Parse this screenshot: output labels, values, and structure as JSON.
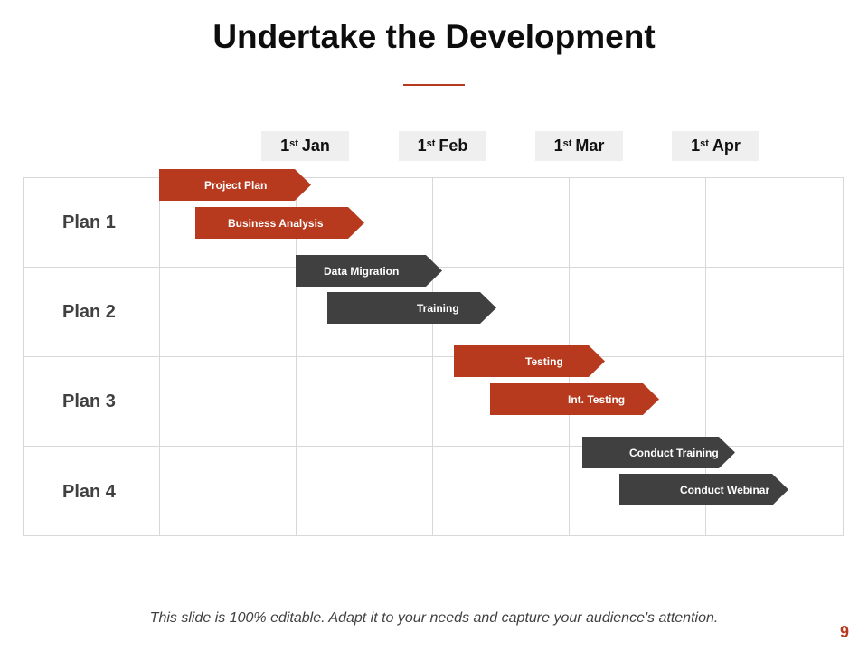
{
  "title": "Undertake the Development",
  "months": [
    {
      "day": "1",
      "suffix": "st",
      "month": "Jan"
    },
    {
      "day": "1",
      "suffix": "st",
      "month": "Feb"
    },
    {
      "day": "1",
      "suffix": "st",
      "month": "Mar"
    },
    {
      "day": "1",
      "suffix": "st",
      "month": "Apr"
    }
  ],
  "plans": [
    "Plan 1",
    "Plan 2",
    "Plan 3",
    "Plan 4"
  ],
  "tasks": [
    {
      "label": "Project Plan",
      "color": "#b73a1e"
    },
    {
      "label": "Business Analysis",
      "color": "#b73a1e"
    },
    {
      "label": "Data Migration",
      "color": "#404040"
    },
    {
      "label": "Training",
      "color": "#404040"
    },
    {
      "label": "Testing",
      "color": "#b73a1e"
    },
    {
      "label": "Int. Testing",
      "color": "#b73a1e"
    },
    {
      "label": "Conduct Training",
      "color": "#404040"
    },
    {
      "label": "Conduct Webinar",
      "color": "#404040"
    }
  ],
  "footer": "This slide is 100% editable. Adapt it to your needs and capture your audience's attention.",
  "page_number": "9"
}
